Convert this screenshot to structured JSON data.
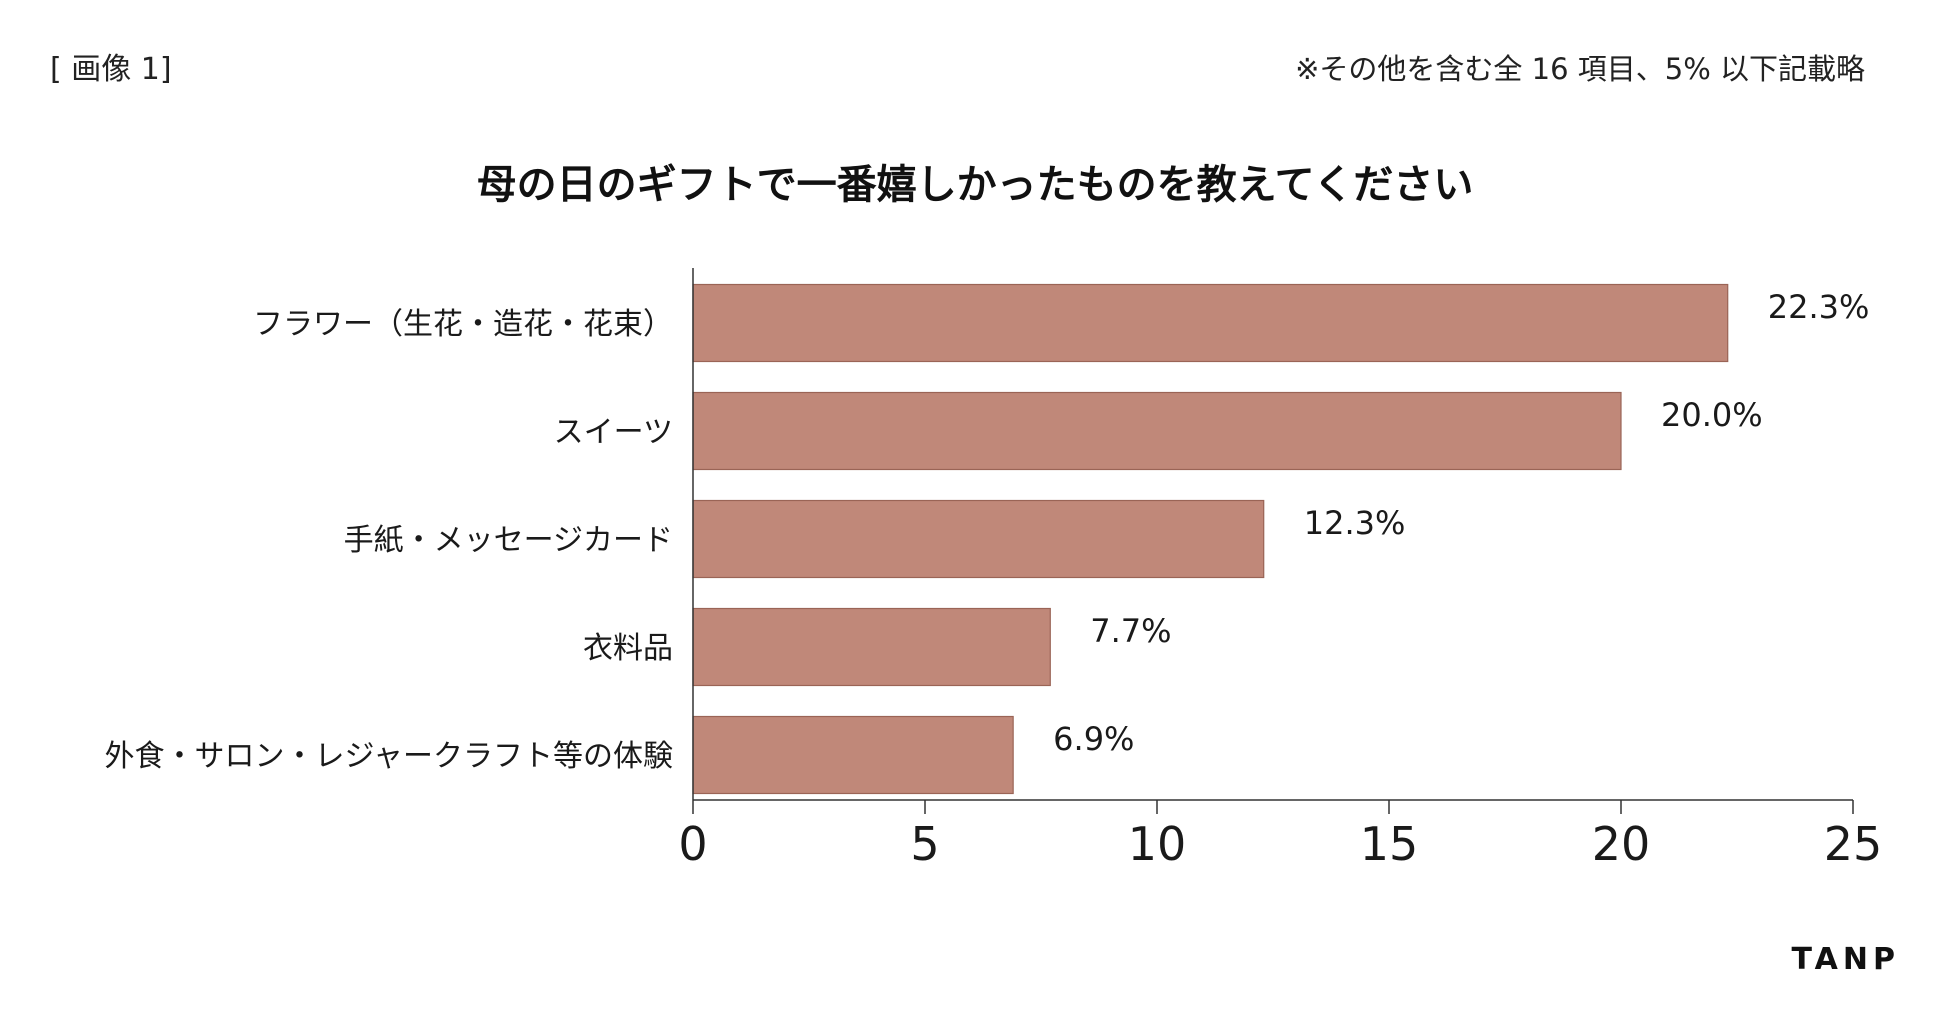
{
  "header": {
    "image_tag": "[ 画像 1]",
    "note": "※その他を含む全 16 項目、5% 以下記載略"
  },
  "brand": {
    "logo_text": "TANP"
  },
  "colors": {
    "bar": "#c08879",
    "bar_stroke": "#9a6456",
    "axis": "#333333"
  },
  "chart_data": {
    "type": "bar",
    "orientation": "horizontal",
    "title": "母の日のギフトで一番嬉しかったものを教えてください",
    "xlabel": "",
    "ylabel": "",
    "xlim": [
      0,
      25
    ],
    "x_ticks": [
      0,
      5,
      10,
      15,
      20,
      25
    ],
    "grid": false,
    "categories": [
      "フラワー（生花・造花・花束）",
      "スイーツ",
      "手紙・メッセージカード",
      "衣料品",
      "外食・サロン・レジャークラフト等の体験"
    ],
    "values": [
      22.3,
      20.0,
      12.3,
      7.7,
      6.9
    ],
    "data_labels": [
      "22.3%",
      "20.0%",
      "12.3%",
      "7.7%",
      "6.9%"
    ]
  }
}
